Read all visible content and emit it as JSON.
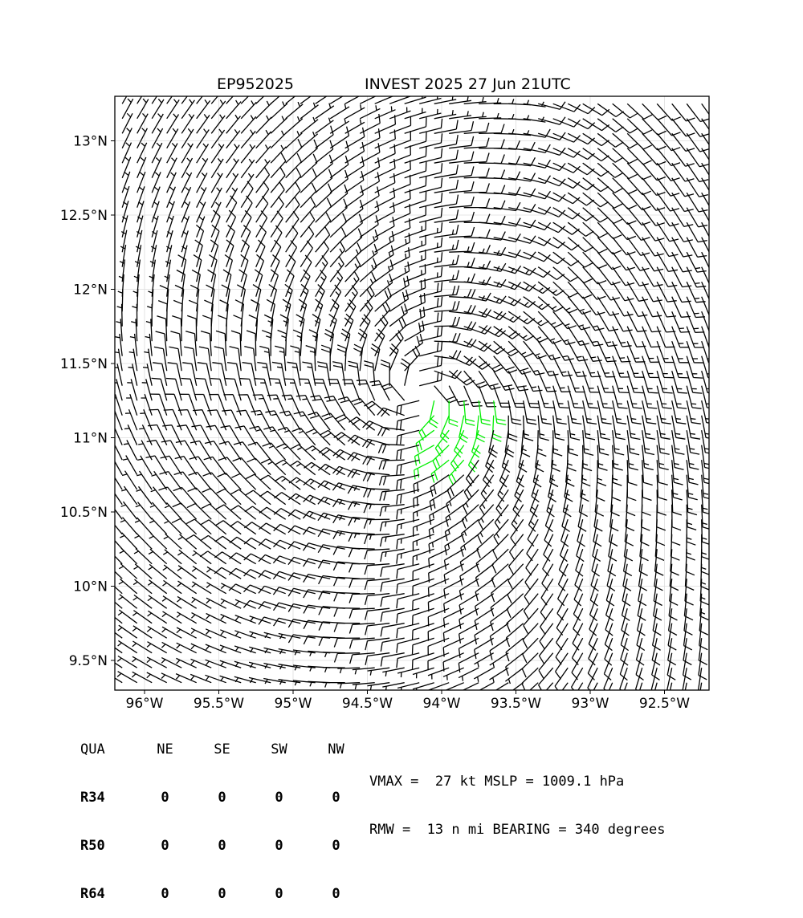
{
  "header": {
    "storm_id": "EP952025",
    "storm_info": "INVEST 2025 27 Jun 21UTC"
  },
  "map": {
    "lon_labels": [
      "96°W",
      "95.5°W",
      "95°W",
      "94.5°W",
      "94°W",
      "93.5°W",
      "93°W",
      "92.5°W"
    ],
    "lat_labels": [
      "13°N",
      "12.5°N",
      "12°N",
      "11.5°N",
      "11°N",
      "10.5°N",
      "10°N",
      "9.5°N"
    ],
    "lon_range": [
      -96.2,
      -92.2
    ],
    "lat_range": [
      9.3,
      13.3
    ],
    "center": {
      "lon": -94.15,
      "lat": 11.3
    },
    "grid": true,
    "barb_color": "#000000",
    "highlight_barb_color": "#00ee00",
    "frame_color": "#000000",
    "grid_color": "#dddddd"
  },
  "table": {
    "headers": [
      "QUA",
      "NE",
      "SE",
      "SW",
      "NW"
    ],
    "rows": [
      {
        "label": "R34",
        "values": [
          "0",
          "0",
          "0",
          "0"
        ]
      },
      {
        "label": "R50",
        "values": [
          "0",
          "0",
          "0",
          "0"
        ]
      },
      {
        "label": "R64",
        "values": [
          "0",
          "0",
          "0",
          "0"
        ]
      }
    ]
  },
  "stats": {
    "line1": "VMAX =  27 kt MSLP = 1009.1 hPa",
    "line2": "RMW =  13 n mi BEARING = 340 degrees"
  }
}
